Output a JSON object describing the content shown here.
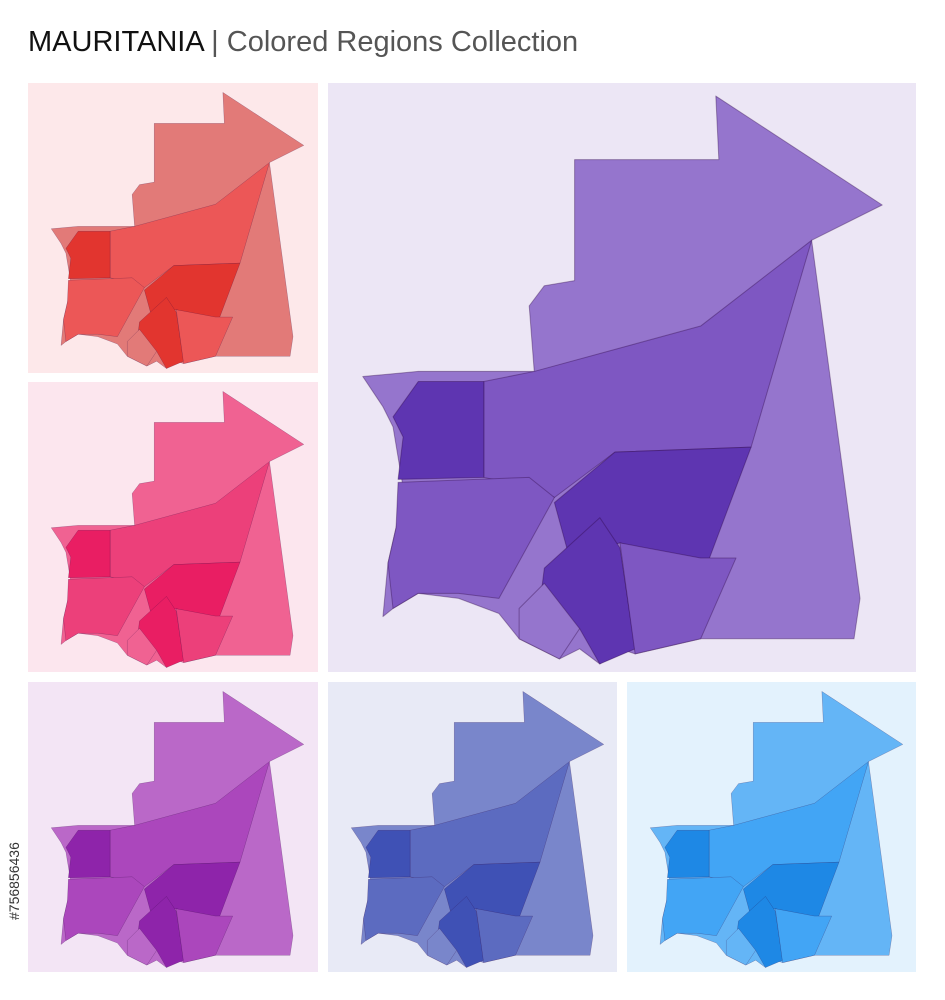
{
  "header": {
    "title": "MAURITANIA",
    "separator": "|",
    "subtitle": "Colored Regions Collection"
  },
  "side_id": "#756856436",
  "panels": [
    {
      "background": "#fde8ea",
      "colors": [
        "#e27a78",
        "#ec5757",
        "#e2352f"
      ]
    },
    {
      "background": "#fce6ee",
      "colors": [
        "#f06292",
        "#ec407a",
        "#e91e63"
      ]
    },
    {
      "background": "#ece6f5",
      "colors": [
        "#9575cd",
        "#7e57c2",
        "#5e35b1"
      ]
    },
    {
      "background": "#f3e5f5",
      "colors": [
        "#ba68c8",
        "#ab47bc",
        "#8e24aa"
      ]
    },
    {
      "background": "#e8eaf6",
      "colors": [
        "#7986cb",
        "#5c6bc0",
        "#3f51b5"
      ]
    },
    {
      "background": "#e3f2fd",
      "colors": [
        "#64b5f6",
        "#42a5f5",
        "#1e88e5"
      ]
    }
  ]
}
